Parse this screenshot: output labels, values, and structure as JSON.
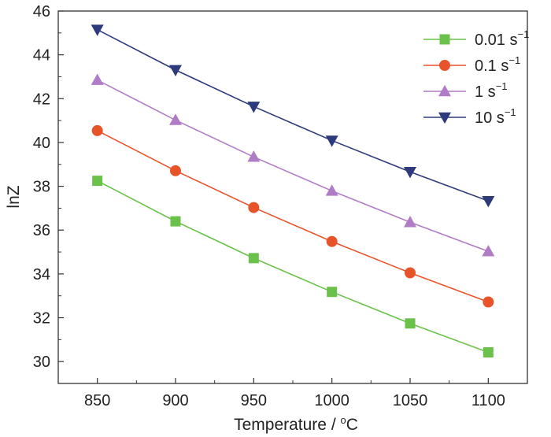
{
  "chart_data": {
    "type": "line",
    "x": [
      850,
      900,
      950,
      1000,
      1050,
      1100
    ],
    "xlabel": "Temperature / °C",
    "xlabel_main": "Temperature / ",
    "xlabel_sup": "o",
    "xlabel_unit": "C",
    "ylabel": "lnZ",
    "xlim": [
      825,
      1125
    ],
    "ylim": [
      29,
      46
    ],
    "xticks": [
      850,
      900,
      950,
      1000,
      1050,
      1100
    ],
    "yticks": [
      30,
      32,
      34,
      36,
      38,
      40,
      42,
      44,
      46
    ],
    "grid": false,
    "legend_position": "top-right",
    "series": [
      {
        "name": "0.01 s⁻¹",
        "label_base": "0.01 s",
        "label_sup": "−1",
        "marker": "square",
        "color": "#6bc24a",
        "values": [
          38.25,
          36.4,
          34.72,
          33.18,
          31.74,
          30.42
        ]
      },
      {
        "name": "0.1 s⁻¹",
        "label_base": "0.1 s",
        "label_sup": "−1",
        "marker": "circle",
        "color": "#e8542a",
        "values": [
          40.54,
          38.71,
          37.03,
          35.48,
          34.05,
          32.72
        ]
      },
      {
        "name": "1 s⁻¹",
        "label_base": "1 s",
        "label_sup": "−1",
        "marker": "triangle-up",
        "color": "#b07cc6",
        "values": [
          42.85,
          41.02,
          39.34,
          37.79,
          36.36,
          35.03
        ]
      },
      {
        "name": "10 s⁻¹",
        "label_base": "10 s",
        "label_sup": "−1",
        "marker": "triangle-down",
        "color": "#2d3a7c",
        "values": [
          45.15,
          43.31,
          41.64,
          40.09,
          38.66,
          37.33
        ]
      }
    ]
  }
}
